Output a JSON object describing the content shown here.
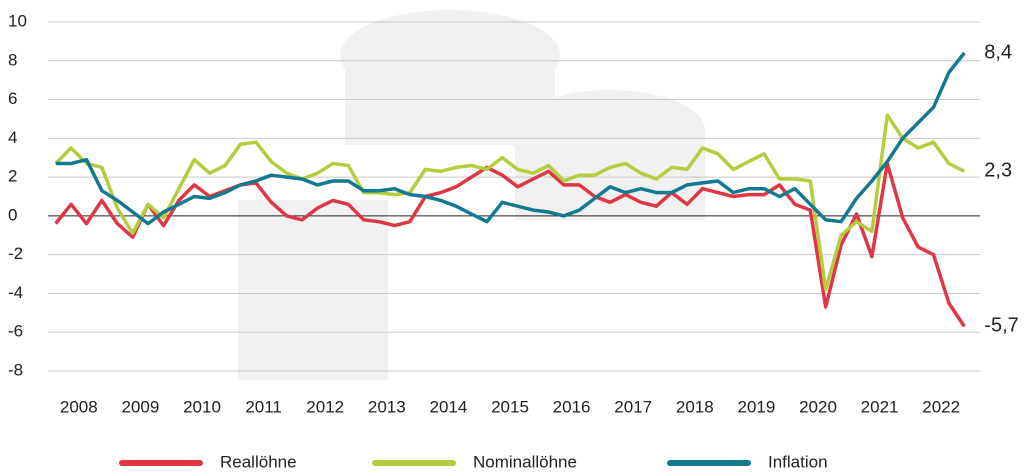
{
  "chart_data": {
    "type": "line",
    "x": [
      2008.125,
      2008.375,
      2008.625,
      2008.875,
      2009.125,
      2009.375,
      2009.625,
      2009.875,
      2010.125,
      2010.375,
      2010.625,
      2010.875,
      2011.125,
      2011.375,
      2011.625,
      2011.875,
      2012.125,
      2012.375,
      2012.625,
      2012.875,
      2013.125,
      2013.375,
      2013.625,
      2013.875,
      2014.125,
      2014.375,
      2014.625,
      2014.875,
      2015.125,
      2015.375,
      2015.625,
      2015.875,
      2016.125,
      2016.375,
      2016.625,
      2016.875,
      2017.125,
      2017.375,
      2017.625,
      2017.875,
      2018.125,
      2018.375,
      2018.625,
      2018.875,
      2019.125,
      2019.375,
      2019.625,
      2019.875,
      2020.125,
      2020.375,
      2020.625,
      2020.875,
      2021.125,
      2021.375,
      2021.625,
      2021.875,
      2022.125,
      2022.375,
      2022.625,
      2022.875
    ],
    "series": [
      {
        "name": "Reallöhne",
        "color": "#e03545",
        "values": [
          -0.4,
          0.6,
          -0.4,
          0.8,
          -0.4,
          -1.1,
          0.6,
          -0.5,
          0.8,
          1.6,
          1.0,
          1.3,
          1.6,
          1.7,
          0.7,
          0.0,
          -0.2,
          0.4,
          0.8,
          0.6,
          -0.2,
          -0.3,
          -0.5,
          -0.3,
          1.0,
          1.2,
          1.5,
          2.0,
          2.5,
          2.1,
          1.5,
          1.9,
          2.3,
          1.6,
          1.6,
          1.0,
          0.7,
          1.1,
          0.7,
          0.5,
          1.2,
          0.6,
          1.4,
          1.2,
          1.0,
          1.1,
          1.1,
          1.6,
          0.6,
          0.3,
          -4.7,
          -1.5,
          0.1,
          -2.1,
          2.7,
          -0.1,
          -1.6,
          -2.0,
          -4.5,
          -5.7
        ],
        "value_labels": [
          null,
          null,
          null,
          null,
          null,
          null,
          null,
          null,
          null,
          null,
          null,
          null,
          null,
          null,
          null,
          null,
          null,
          null,
          null,
          null,
          null,
          null,
          null,
          null,
          null,
          null,
          null,
          null,
          null,
          null,
          null,
          null,
          null,
          null,
          null,
          null,
          null,
          null,
          null,
          null,
          null,
          null,
          null,
          null,
          null,
          null,
          null,
          null,
          null,
          null,
          null,
          null,
          null,
          null,
          null,
          null,
          null,
          null,
          null,
          "-5,7"
        ]
      },
      {
        "name": "Nominallöhne",
        "color": "#b3cd3c",
        "values": [
          2.7,
          3.5,
          2.7,
          2.5,
          0.4,
          -0.9,
          0.6,
          -0.1,
          1.4,
          2.9,
          2.2,
          2.6,
          3.7,
          3.8,
          2.8,
          2.2,
          1.9,
          2.2,
          2.7,
          2.6,
          1.2,
          1.2,
          1.1,
          1.2,
          2.4,
          2.3,
          2.5,
          2.6,
          2.4,
          3.0,
          2.4,
          2.2,
          2.6,
          1.8,
          2.1,
          2.1,
          2.5,
          2.7,
          2.2,
          1.9,
          2.5,
          2.4,
          3.5,
          3.2,
          2.4,
          2.8,
          3.2,
          1.9,
          1.9,
          1.8,
          -3.8,
          -1.0,
          -0.3,
          -0.8,
          5.2,
          4.0,
          3.5,
          3.8,
          2.7,
          2.3
        ],
        "value_labels": [
          null,
          null,
          null,
          null,
          null,
          null,
          null,
          null,
          null,
          null,
          null,
          null,
          null,
          null,
          null,
          null,
          null,
          null,
          null,
          null,
          null,
          null,
          null,
          null,
          null,
          null,
          null,
          null,
          null,
          null,
          null,
          null,
          null,
          null,
          null,
          null,
          null,
          null,
          null,
          null,
          null,
          null,
          null,
          null,
          null,
          null,
          null,
          null,
          null,
          null,
          null,
          null,
          null,
          null,
          null,
          null,
          null,
          null,
          null,
          "2,3"
        ]
      },
      {
        "name": "Inflation",
        "color": "#117a90",
        "values": [
          2.7,
          2.7,
          2.9,
          1.3,
          0.8,
          0.2,
          -0.4,
          0.2,
          0.6,
          1.0,
          0.9,
          1.2,
          1.6,
          1.8,
          2.1,
          2.0,
          1.9,
          1.6,
          1.8,
          1.8,
          1.3,
          1.3,
          1.4,
          1.1,
          1.0,
          0.8,
          0.5,
          0.1,
          -0.3,
          0.7,
          0.5,
          0.3,
          0.2,
          0.0,
          0.3,
          0.9,
          1.5,
          1.2,
          1.4,
          1.2,
          1.2,
          1.6,
          1.7,
          1.8,
          1.2,
          1.4,
          1.4,
          1.0,
          1.4,
          0.6,
          -0.2,
          -0.3,
          0.9,
          1.8,
          2.8,
          4.0,
          4.8,
          5.6,
          7.4,
          8.4
        ],
        "value_labels": [
          null,
          null,
          null,
          null,
          null,
          null,
          null,
          null,
          null,
          null,
          null,
          null,
          null,
          null,
          null,
          null,
          null,
          null,
          null,
          null,
          null,
          null,
          null,
          null,
          null,
          null,
          null,
          null,
          null,
          null,
          null,
          null,
          null,
          null,
          null,
          null,
          null,
          null,
          null,
          null,
          null,
          null,
          null,
          null,
          null,
          null,
          null,
          null,
          null,
          null,
          null,
          null,
          null,
          null,
          null,
          null,
          null,
          null,
          null,
          "8,4"
        ]
      }
    ],
    "xlim": [
      2008,
      2023
    ],
    "xticks": [
      {
        "value": 2008.5,
        "label": "2008"
      },
      {
        "value": 2009.5,
        "label": "2009"
      },
      {
        "value": 2010.5,
        "label": "2010"
      },
      {
        "value": 2011.5,
        "label": "2011"
      },
      {
        "value": 2012.5,
        "label": "2012"
      },
      {
        "value": 2013.5,
        "label": "2013"
      },
      {
        "value": 2014.5,
        "label": "2014"
      },
      {
        "value": 2015.5,
        "label": "2015"
      },
      {
        "value": 2016.5,
        "label": "2016"
      },
      {
        "value": 2017.5,
        "label": "2017"
      },
      {
        "value": 2018.5,
        "label": "2018"
      },
      {
        "value": 2019.5,
        "label": "2019"
      },
      {
        "value": 2020.5,
        "label": "2020"
      },
      {
        "value": 2021.5,
        "label": "2021"
      },
      {
        "value": 2022.5,
        "label": "2022"
      }
    ],
    "ylim": [
      -8,
      10
    ],
    "yticks": [
      -8,
      -6,
      -4,
      -2,
      0,
      2,
      4,
      6,
      8,
      10
    ],
    "grid": true,
    "legend": "bottom"
  }
}
